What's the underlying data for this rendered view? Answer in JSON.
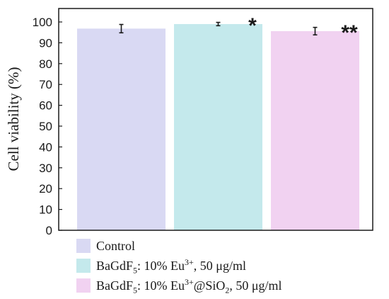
{
  "chart_data": {
    "type": "bar",
    "ylabel": "Cell viability (%)",
    "xlabel": "",
    "ylim": [
      0,
      100
    ],
    "yticks": [
      "0",
      "10",
      "20",
      "30",
      "40",
      "50",
      "60",
      "70",
      "80",
      "90",
      "100"
    ],
    "grid": false,
    "legend_position": "bottom",
    "categories": [
      "Control",
      "BaGdF5: 10% Eu3+, 50 μg/ml",
      "BaGdF5: 10% Eu3+@SiO2, 50 μg/ml"
    ],
    "values": [
      96.8,
      99.0,
      95.6
    ],
    "errors": [
      2.0,
      0.8,
      1.8
    ],
    "significance": [
      "",
      "*",
      "**"
    ],
    "colors": [
      "#d9d9f3",
      "#c4e9ec",
      "#f1d2f1"
    ]
  },
  "legend": {
    "items": [
      {
        "label": "Control",
        "color": "#d9d9f3"
      },
      {
        "label": "BaGdF5: 10% Eu3+, 50 μg/ml",
        "color": "#c4e9ec"
      },
      {
        "label": "BaGdF5: 10% Eu3+@SiO2, 50 μg/ml",
        "color": "#f1d2f1"
      }
    ]
  }
}
